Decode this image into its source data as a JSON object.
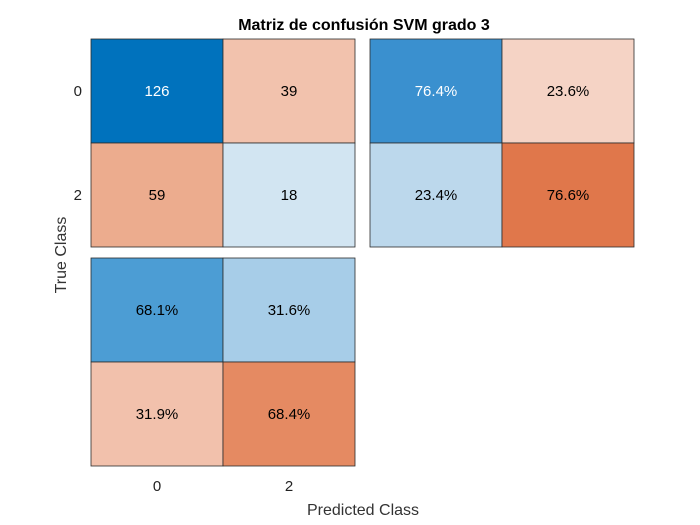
{
  "chart_data": {
    "type": "heatmap",
    "title": "Matriz de confusión SVM grado 3",
    "xlabel": "Predicted Class",
    "ylabel": "True Class",
    "classes": [
      "0",
      "2"
    ],
    "counts": [
      [
        126,
        39
      ],
      [
        59,
        18
      ]
    ],
    "row_summary": [
      [
        "76.4%",
        "23.6%"
      ],
      [
        "23.4%",
        "76.6%"
      ]
    ],
    "column_summary": [
      [
        "68.1%",
        "31.6%"
      ],
      [
        "31.9%",
        "68.4%"
      ]
    ],
    "colors": {
      "counts": [
        [
          "#0072bd",
          "#f2c2ad"
        ],
        [
          "#ecac8e",
          "#d2e5f2"
        ]
      ],
      "row_summary": [
        [
          "#3a90cf",
          "#f5d3c5"
        ],
        [
          "#bcd8ec",
          "#e0774b"
        ]
      ],
      "column_summary": [
        [
          "#4c9dd4",
          "#a7cde8"
        ],
        [
          "#f2c1ac",
          "#e58a62"
        ]
      ],
      "counts_text": [
        [
          "#ffffff",
          "#000000"
        ],
        [
          "#000000",
          "#000000"
        ]
      ],
      "row_summary_text": [
        [
          "#ffffff",
          "#000000"
        ],
        [
          "#000000",
          "#000000"
        ]
      ],
      "column_summary_text": [
        [
          "#000000",
          "#000000"
        ],
        [
          "#000000",
          "#000000"
        ]
      ]
    }
  }
}
